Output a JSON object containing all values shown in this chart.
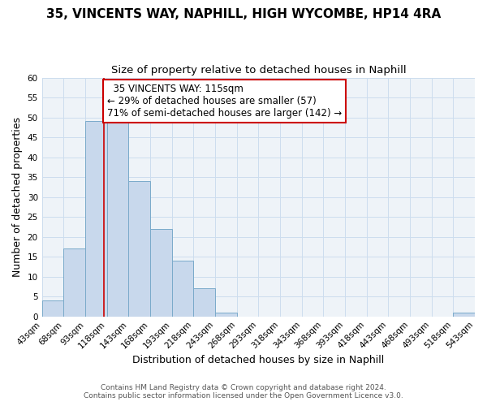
{
  "title": "35, VINCENTS WAY, NAPHILL, HIGH WYCOMBE, HP14 4RA",
  "subtitle": "Size of property relative to detached houses in Naphill",
  "xlabel": "Distribution of detached houses by size in Naphill",
  "ylabel": "Number of detached properties",
  "footer_line1": "Contains HM Land Registry data © Crown copyright and database right 2024.",
  "footer_line2": "Contains public sector information licensed under the Open Government Licence v3.0.",
  "bin_edges": [
    43,
    68,
    93,
    118,
    143,
    168,
    193,
    218,
    243,
    268,
    293,
    318,
    343,
    368,
    393,
    418,
    443,
    468,
    493,
    518,
    543
  ],
  "bar_heights": [
    4,
    17,
    49,
    50,
    34,
    22,
    14,
    7,
    1,
    0,
    0,
    0,
    0,
    0,
    0,
    0,
    0,
    0,
    0,
    1
  ],
  "bar_color": "#c8d8ec",
  "bar_edgecolor": "#7aaaca",
  "property_size": 115,
  "vline_color": "#cc0000",
  "ylim": [
    0,
    60
  ],
  "annotation_title": "35 VINCENTS WAY: 115sqm",
  "annotation_line1": "← 29% of detached houses are smaller (57)",
  "annotation_line2": "71% of semi-detached houses are larger (142) →",
  "annotation_box_color": "#ffffff",
  "annotation_box_edgecolor": "#cc0000",
  "grid_color": "#ccddee",
  "background_color": "#ffffff",
  "plot_bg_color": "#eef3f8",
  "title_fontsize": 11,
  "subtitle_fontsize": 9.5,
  "axis_label_fontsize": 9,
  "tick_fontsize": 7.5,
  "annotation_fontsize": 8.5,
  "footer_fontsize": 6.5
}
